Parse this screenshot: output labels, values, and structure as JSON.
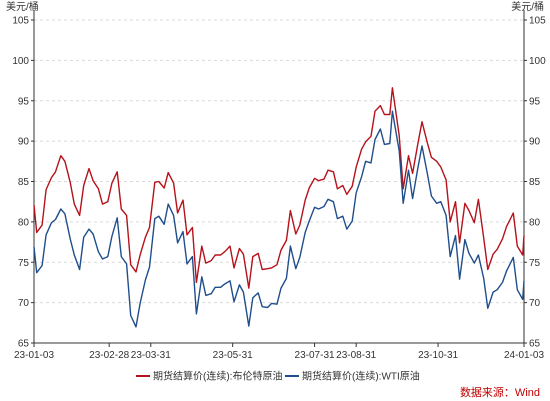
{
  "chart_data": {
    "type": "line",
    "ylabel_left": "美元/桶",
    "ylabel_right": "美元/桶",
    "ylim": [
      65,
      105
    ],
    "yticks": [
      65,
      70,
      75,
      80,
      85,
      90,
      95,
      100,
      105
    ],
    "xlim": [
      "2023-01-03",
      "2024-01-03"
    ],
    "xticks": [
      {
        "date": "2023-01-03",
        "label": "23-01-03"
      },
      {
        "date": "2023-02-28",
        "label": "23-02-28"
      },
      {
        "date": "2023-03-31",
        "label": "23-03-31"
      },
      {
        "date": "2023-05-31",
        "label": "23-05-31"
      },
      {
        "date": "2023-07-31",
        "label": "23-07-31"
      },
      {
        "date": "2023-08-31",
        "label": "23-08-31"
      },
      {
        "date": "2023-10-31",
        "label": "23-10-31"
      },
      {
        "date": "2024-01-03",
        "label": "24-01-03"
      }
    ],
    "grid": "horizontal-dashed",
    "legend_position": "bottom",
    "series": [
      {
        "name": "期货结算价(连续):布伦特原油",
        "color": "#b5121b",
        "points": [
          [
            "2023-01-03",
            82.1
          ],
          [
            "2023-01-05",
            78.7
          ],
          [
            "2023-01-09",
            79.6
          ],
          [
            "2023-01-12",
            84.0
          ],
          [
            "2023-01-16",
            85.5
          ],
          [
            "2023-01-19",
            86.2
          ],
          [
            "2023-01-23",
            88.2
          ],
          [
            "2023-01-26",
            87.5
          ],
          [
            "2023-01-30",
            84.9
          ],
          [
            "2023-02-02",
            82.2
          ],
          [
            "2023-02-06",
            80.8
          ],
          [
            "2023-02-09",
            84.5
          ],
          [
            "2023-02-13",
            86.6
          ],
          [
            "2023-02-16",
            85.1
          ],
          [
            "2023-02-20",
            84.1
          ],
          [
            "2023-02-23",
            82.2
          ],
          [
            "2023-02-27",
            82.5
          ],
          [
            "2023-03-02",
            84.8
          ],
          [
            "2023-03-06",
            86.2
          ],
          [
            "2023-03-09",
            81.6
          ],
          [
            "2023-03-13",
            80.8
          ],
          [
            "2023-03-16",
            74.7
          ],
          [
            "2023-03-20",
            73.8
          ],
          [
            "2023-03-23",
            75.9
          ],
          [
            "2023-03-27",
            78.1
          ],
          [
            "2023-03-30",
            79.3
          ],
          [
            "2023-04-03",
            84.9
          ],
          [
            "2023-04-06",
            85.0
          ],
          [
            "2023-04-10",
            84.2
          ],
          [
            "2023-04-13",
            86.1
          ],
          [
            "2023-04-17",
            84.8
          ],
          [
            "2023-04-20",
            81.1
          ],
          [
            "2023-04-24",
            82.7
          ],
          [
            "2023-04-27",
            78.4
          ],
          [
            "2023-05-01",
            79.3
          ],
          [
            "2023-05-04",
            72.5
          ],
          [
            "2023-05-08",
            77.0
          ],
          [
            "2023-05-11",
            74.9
          ],
          [
            "2023-05-15",
            75.2
          ],
          [
            "2023-05-18",
            75.9
          ],
          [
            "2023-05-22",
            75.9
          ],
          [
            "2023-05-25",
            76.3
          ],
          [
            "2023-05-29",
            77.0
          ],
          [
            "2023-06-01",
            74.3
          ],
          [
            "2023-06-05",
            76.7
          ],
          [
            "2023-06-08",
            76.0
          ],
          [
            "2023-06-12",
            71.8
          ],
          [
            "2023-06-15",
            75.7
          ],
          [
            "2023-06-19",
            76.1
          ],
          [
            "2023-06-22",
            74.1
          ],
          [
            "2023-06-26",
            74.2
          ],
          [
            "2023-06-29",
            74.3
          ],
          [
            "2023-07-03",
            74.7
          ],
          [
            "2023-07-06",
            76.5
          ],
          [
            "2023-07-10",
            77.7
          ],
          [
            "2023-07-13",
            81.4
          ],
          [
            "2023-07-17",
            78.5
          ],
          [
            "2023-07-20",
            79.6
          ],
          [
            "2023-07-24",
            82.7
          ],
          [
            "2023-07-27",
            84.2
          ],
          [
            "2023-07-31",
            85.4
          ],
          [
            "2023-08-03",
            85.1
          ],
          [
            "2023-08-07",
            85.3
          ],
          [
            "2023-08-10",
            86.4
          ],
          [
            "2023-08-14",
            86.2
          ],
          [
            "2023-08-17",
            84.1
          ],
          [
            "2023-08-21",
            84.5
          ],
          [
            "2023-08-24",
            83.4
          ],
          [
            "2023-08-28",
            84.4
          ],
          [
            "2023-08-31",
            86.8
          ],
          [
            "2023-09-04",
            89.0
          ],
          [
            "2023-09-07",
            89.9
          ],
          [
            "2023-09-11",
            90.6
          ],
          [
            "2023-09-14",
            93.7
          ],
          [
            "2023-09-18",
            94.4
          ],
          [
            "2023-09-21",
            93.3
          ],
          [
            "2023-09-25",
            93.3
          ],
          [
            "2023-09-27",
            96.6
          ],
          [
            "2023-10-02",
            90.7
          ],
          [
            "2023-10-05",
            84.1
          ],
          [
            "2023-10-09",
            88.2
          ],
          [
            "2023-10-12",
            86.0
          ],
          [
            "2023-10-16",
            89.7
          ],
          [
            "2023-10-19",
            92.4
          ],
          [
            "2023-10-23",
            89.8
          ],
          [
            "2023-10-26",
            88.0
          ],
          [
            "2023-10-30",
            87.5
          ],
          [
            "2023-11-02",
            86.8
          ],
          [
            "2023-11-06",
            85.2
          ],
          [
            "2023-11-09",
            80.0
          ],
          [
            "2023-11-13",
            82.5
          ],
          [
            "2023-11-16",
            77.4
          ],
          [
            "2023-11-20",
            82.3
          ],
          [
            "2023-11-23",
            81.4
          ],
          [
            "2023-11-27",
            79.9
          ],
          [
            "2023-11-30",
            82.8
          ],
          [
            "2023-12-04",
            78.0
          ],
          [
            "2023-12-07",
            74.1
          ],
          [
            "2023-12-11",
            76.0
          ],
          [
            "2023-12-14",
            76.6
          ],
          [
            "2023-12-18",
            77.9
          ],
          [
            "2023-12-21",
            79.4
          ],
          [
            "2023-12-26",
            81.1
          ],
          [
            "2023-12-29",
            77.0
          ],
          [
            "2024-01-02",
            75.9
          ],
          [
            "2024-01-03",
            78.3
          ]
        ]
      },
      {
        "name": "期货结算价(连续):WTI原油",
        "color": "#1f4e8c",
        "points": [
          [
            "2023-01-03",
            76.9
          ],
          [
            "2023-01-05",
            73.7
          ],
          [
            "2023-01-09",
            74.6
          ],
          [
            "2023-01-12",
            78.4
          ],
          [
            "2023-01-16",
            79.9
          ],
          [
            "2023-01-19",
            80.3
          ],
          [
            "2023-01-23",
            81.6
          ],
          [
            "2023-01-26",
            81.0
          ],
          [
            "2023-01-30",
            77.9
          ],
          [
            "2023-02-02",
            75.9
          ],
          [
            "2023-02-06",
            74.1
          ],
          [
            "2023-02-09",
            78.1
          ],
          [
            "2023-02-13",
            79.1
          ],
          [
            "2023-02-16",
            78.5
          ],
          [
            "2023-02-20",
            76.3
          ],
          [
            "2023-02-23",
            75.4
          ],
          [
            "2023-02-27",
            75.7
          ],
          [
            "2023-03-02",
            78.2
          ],
          [
            "2023-03-06",
            80.5
          ],
          [
            "2023-03-09",
            75.7
          ],
          [
            "2023-03-13",
            74.8
          ],
          [
            "2023-03-16",
            68.4
          ],
          [
            "2023-03-20",
            67.0
          ],
          [
            "2023-03-23",
            69.9
          ],
          [
            "2023-03-27",
            72.8
          ],
          [
            "2023-03-30",
            74.4
          ],
          [
            "2023-04-03",
            80.4
          ],
          [
            "2023-04-06",
            80.7
          ],
          [
            "2023-04-10",
            79.7
          ],
          [
            "2023-04-13",
            82.2
          ],
          [
            "2023-04-17",
            80.8
          ],
          [
            "2023-04-20",
            77.4
          ],
          [
            "2023-04-24",
            78.8
          ],
          [
            "2023-04-27",
            74.8
          ],
          [
            "2023-05-01",
            75.7
          ],
          [
            "2023-05-04",
            68.6
          ],
          [
            "2023-05-08",
            73.2
          ],
          [
            "2023-05-11",
            70.9
          ],
          [
            "2023-05-15",
            71.1
          ],
          [
            "2023-05-18",
            71.9
          ],
          [
            "2023-05-22",
            71.9
          ],
          [
            "2023-05-25",
            72.3
          ],
          [
            "2023-05-29",
            72.7
          ],
          [
            "2023-06-01",
            70.1
          ],
          [
            "2023-06-05",
            72.2
          ],
          [
            "2023-06-08",
            71.3
          ],
          [
            "2023-06-12",
            67.1
          ],
          [
            "2023-06-15",
            70.6
          ],
          [
            "2023-06-19",
            71.2
          ],
          [
            "2023-06-22",
            69.5
          ],
          [
            "2023-06-26",
            69.4
          ],
          [
            "2023-06-29",
            69.9
          ],
          [
            "2023-07-03",
            69.8
          ],
          [
            "2023-07-06",
            71.8
          ],
          [
            "2023-07-10",
            73.0
          ],
          [
            "2023-07-13",
            77.0
          ],
          [
            "2023-07-17",
            74.2
          ],
          [
            "2023-07-20",
            75.6
          ],
          [
            "2023-07-24",
            78.7
          ],
          [
            "2023-07-27",
            80.1
          ],
          [
            "2023-07-31",
            81.8
          ],
          [
            "2023-08-03",
            81.6
          ],
          [
            "2023-08-07",
            81.9
          ],
          [
            "2023-08-10",
            82.8
          ],
          [
            "2023-08-14",
            82.5
          ],
          [
            "2023-08-17",
            80.4
          ],
          [
            "2023-08-21",
            80.7
          ],
          [
            "2023-08-24",
            79.1
          ],
          [
            "2023-08-28",
            80.1
          ],
          [
            "2023-08-31",
            83.6
          ],
          [
            "2023-09-04",
            85.6
          ],
          [
            "2023-09-07",
            87.5
          ],
          [
            "2023-09-11",
            87.3
          ],
          [
            "2023-09-14",
            90.2
          ],
          [
            "2023-09-18",
            91.5
          ],
          [
            "2023-09-21",
            89.6
          ],
          [
            "2023-09-25",
            89.7
          ],
          [
            "2023-09-27",
            93.7
          ],
          [
            "2023-10-02",
            88.8
          ],
          [
            "2023-10-05",
            82.3
          ],
          [
            "2023-10-09",
            86.4
          ],
          [
            "2023-10-12",
            82.9
          ],
          [
            "2023-10-16",
            86.7
          ],
          [
            "2023-10-19",
            89.4
          ],
          [
            "2023-10-23",
            86.0
          ],
          [
            "2023-10-26",
            83.2
          ],
          [
            "2023-10-30",
            82.3
          ],
          [
            "2023-11-02",
            82.5
          ],
          [
            "2023-11-06",
            80.8
          ],
          [
            "2023-11-09",
            75.7
          ],
          [
            "2023-11-13",
            78.3
          ],
          [
            "2023-11-16",
            72.9
          ],
          [
            "2023-11-20",
            77.8
          ],
          [
            "2023-11-23",
            76.1
          ],
          [
            "2023-11-27",
            74.9
          ],
          [
            "2023-11-30",
            75.9
          ],
          [
            "2023-12-04",
            73.0
          ],
          [
            "2023-12-07",
            69.3
          ],
          [
            "2023-12-11",
            71.3
          ],
          [
            "2023-12-14",
            71.6
          ],
          [
            "2023-12-18",
            72.5
          ],
          [
            "2023-12-21",
            73.9
          ],
          [
            "2023-12-26",
            75.6
          ],
          [
            "2023-12-29",
            71.6
          ],
          [
            "2024-01-02",
            70.4
          ],
          [
            "2024-01-03",
            72.7
          ]
        ]
      }
    ]
  },
  "source": "数据来源：Wind"
}
